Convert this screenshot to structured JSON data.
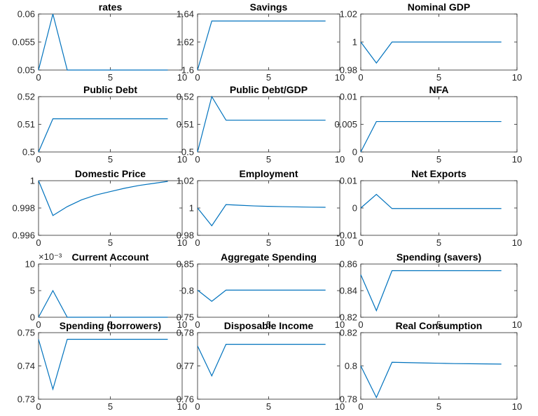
{
  "chart_data": [
    {
      "type": "line",
      "title": "rates",
      "x": [
        0,
        1,
        2,
        3,
        4,
        5,
        6,
        7,
        8,
        9
      ],
      "values": [
        0.05,
        0.06,
        0.05,
        0.05,
        0.05,
        0.05,
        0.05,
        0.05,
        0.05,
        0.05
      ],
      "color": "#0072bd",
      "xlim": [
        0,
        10
      ],
      "xticks": [
        0,
        5,
        10
      ],
      "ylim": [
        0.05,
        0.06
      ],
      "yticks": [
        0.05,
        0.055,
        0.06
      ]
    },
    {
      "type": "line",
      "title": "Savings",
      "x": [
        0,
        1,
        2,
        3,
        4,
        5,
        6,
        7,
        8,
        9
      ],
      "values": [
        1.6,
        1.635,
        1.635,
        1.635,
        1.635,
        1.635,
        1.635,
        1.635,
        1.635,
        1.635
      ],
      "color": "#0072bd",
      "xlim": [
        0,
        10
      ],
      "xticks": [
        0,
        5,
        10
      ],
      "ylim": [
        1.6,
        1.64
      ],
      "yticks": [
        1.6,
        1.62,
        1.64
      ]
    },
    {
      "type": "line",
      "title": "Nominal GDP",
      "x": [
        0,
        1,
        2,
        3,
        4,
        5,
        6,
        7,
        8,
        9
      ],
      "values": [
        1,
        0.985,
        1,
        1,
        1,
        1,
        1,
        1,
        1,
        1
      ],
      "color": "#0072bd",
      "xlim": [
        0,
        10
      ],
      "xticks": [
        0,
        5,
        10
      ],
      "ylim": [
        0.98,
        1.02
      ],
      "yticks": [
        0.98,
        1,
        1.02
      ]
    },
    {
      "type": "line",
      "title": "Public Debt",
      "x": [
        0,
        1,
        2,
        3,
        4,
        5,
        6,
        7,
        8,
        9
      ],
      "values": [
        0.5,
        0.512,
        0.512,
        0.512,
        0.512,
        0.512,
        0.512,
        0.512,
        0.512,
        0.512
      ],
      "color": "#0072bd",
      "xlim": [
        0,
        10
      ],
      "xticks": [
        0,
        5,
        10
      ],
      "ylim": [
        0.5,
        0.52
      ],
      "yticks": [
        0.5,
        0.51,
        0.52
      ]
    },
    {
      "type": "line",
      "title": "Public Debt/GDP",
      "x": [
        0,
        1,
        2,
        3,
        4,
        5,
        6,
        7,
        8,
        9
      ],
      "values": [
        0.5,
        0.52,
        0.5115,
        0.5115,
        0.5115,
        0.5115,
        0.5115,
        0.5115,
        0.5115,
        0.5115
      ],
      "color": "#0072bd",
      "xlim": [
        0,
        10
      ],
      "xticks": [
        0,
        5,
        10
      ],
      "ylim": [
        0.5,
        0.52
      ],
      "yticks": [
        0.5,
        0.51,
        0.52
      ]
    },
    {
      "type": "line",
      "title": "NFA",
      "x": [
        0,
        1,
        2,
        3,
        4,
        5,
        6,
        7,
        8,
        9
      ],
      "values": [
        0,
        0.0055,
        0.0055,
        0.0055,
        0.0055,
        0.0055,
        0.0055,
        0.0055,
        0.0055,
        0.0055
      ],
      "color": "#0072bd",
      "xlim": [
        0,
        10
      ],
      "xticks": [
        0,
        5,
        10
      ],
      "ylim": [
        0,
        0.01
      ],
      "yticks": [
        0,
        0.005,
        0.01
      ]
    },
    {
      "type": "line",
      "title": "Domestic Price",
      "x": [
        0,
        1,
        2,
        3,
        4,
        5,
        6,
        7,
        8,
        9
      ],
      "values": [
        1,
        0.99745,
        0.9981,
        0.9986,
        0.99895,
        0.9992,
        0.99945,
        0.99965,
        0.9998,
        0.99995
      ],
      "color": "#0072bd",
      "xlim": [
        0,
        10
      ],
      "xticks": [
        0,
        5,
        10
      ],
      "ylim": [
        0.996,
        1
      ],
      "yticks": [
        0.996,
        0.998,
        1
      ]
    },
    {
      "type": "line",
      "title": "Employment",
      "x": [
        0,
        1,
        2,
        3,
        4,
        5,
        6,
        7,
        8,
        9
      ],
      "values": [
        1,
        0.987,
        1.0025,
        1.002,
        1.0015,
        1.0012,
        1.001,
        1.0008,
        1.0006,
        1.0005
      ],
      "color": "#0072bd",
      "xlim": [
        0,
        10
      ],
      "xticks": [
        0,
        5,
        10
      ],
      "ylim": [
        0.98,
        1.02
      ],
      "yticks": [
        0.98,
        1,
        1.02
      ]
    },
    {
      "type": "line",
      "title": "Net Exports",
      "x": [
        0,
        1,
        2,
        3,
        4,
        5,
        6,
        7,
        8,
        9
      ],
      "values": [
        0,
        0.005,
        -0.0002,
        -0.0002,
        -0.0002,
        -0.0002,
        -0.0002,
        -0.0002,
        -0.0002,
        -0.0002
      ],
      "color": "#0072bd",
      "xlim": [
        0,
        10
      ],
      "xticks": [
        0,
        5,
        10
      ],
      "ylim": [
        -0.01,
        0.01
      ],
      "yticks": [
        -0.01,
        0,
        0.01
      ]
    },
    {
      "type": "line",
      "title": "Current Account",
      "y_exponent_label": "×10⁻³",
      "x": [
        0,
        1,
        2,
        3,
        4,
        5,
        6,
        7,
        8,
        9
      ],
      "values": [
        0,
        5,
        0,
        0,
        0,
        0,
        0,
        0,
        0,
        0
      ],
      "color": "#0072bd",
      "xlim": [
        0,
        10
      ],
      "xticks": [
        0,
        5,
        10
      ],
      "ylim": [
        0,
        10
      ],
      "yticks": [
        0,
        5,
        10
      ]
    },
    {
      "type": "line",
      "title": "Aggregate Spending",
      "x": [
        0,
        1,
        2,
        3,
        4,
        5,
        6,
        7,
        8,
        9
      ],
      "values": [
        0.801,
        0.78,
        0.801,
        0.801,
        0.801,
        0.801,
        0.801,
        0.801,
        0.801,
        0.801
      ],
      "color": "#0072bd",
      "xlim": [
        0,
        10
      ],
      "xticks": [
        0,
        5,
        10
      ],
      "ylim": [
        0.75,
        0.85
      ],
      "yticks": [
        0.75,
        0.8,
        0.85
      ]
    },
    {
      "type": "line",
      "title": "Spending (savers)",
      "x": [
        0,
        1,
        2,
        3,
        4,
        5,
        6,
        7,
        8,
        9
      ],
      "values": [
        0.852,
        0.825,
        0.855,
        0.855,
        0.855,
        0.855,
        0.855,
        0.855,
        0.855,
        0.855
      ],
      "color": "#0072bd",
      "xlim": [
        0,
        10
      ],
      "xticks": [
        0,
        5,
        10
      ],
      "ylim": [
        0.82,
        0.86
      ],
      "yticks": [
        0.82,
        0.84,
        0.86
      ]
    },
    {
      "type": "line",
      "title": "Spending (borrowers)",
      "x": [
        0,
        1,
        2,
        3,
        4,
        5,
        6,
        7,
        8,
        9
      ],
      "values": [
        0.748,
        0.733,
        0.748,
        0.748,
        0.748,
        0.748,
        0.748,
        0.748,
        0.748,
        0.748
      ],
      "color": "#0072bd",
      "xlim": [
        0,
        10
      ],
      "xticks": [
        0,
        5,
        10
      ],
      "ylim": [
        0.73,
        0.75
      ],
      "yticks": [
        0.73,
        0.74,
        0.75
      ]
    },
    {
      "type": "line",
      "title": "Disposable Income",
      "x": [
        0,
        1,
        2,
        3,
        4,
        5,
        6,
        7,
        8,
        9
      ],
      "values": [
        0.776,
        0.767,
        0.7765,
        0.7765,
        0.7765,
        0.7765,
        0.7765,
        0.7765,
        0.7765,
        0.7765
      ],
      "color": "#0072bd",
      "xlim": [
        0,
        10
      ],
      "xticks": [
        0,
        5,
        10
      ],
      "ylim": [
        0.76,
        0.78
      ],
      "yticks": [
        0.76,
        0.77,
        0.78
      ]
    },
    {
      "type": "line",
      "title": "Real Consumption",
      "x": [
        0,
        1,
        2,
        3,
        4,
        5,
        6,
        7,
        8,
        9
      ],
      "values": [
        0.8,
        0.781,
        0.8022,
        0.802,
        0.8018,
        0.8016,
        0.8014,
        0.8013,
        0.8012,
        0.8011
      ],
      "color": "#0072bd",
      "xlim": [
        0,
        10
      ],
      "xticks": [
        0,
        5,
        10
      ],
      "ylim": [
        0.78,
        0.82
      ],
      "yticks": [
        0.78,
        0.8,
        0.82
      ]
    }
  ]
}
